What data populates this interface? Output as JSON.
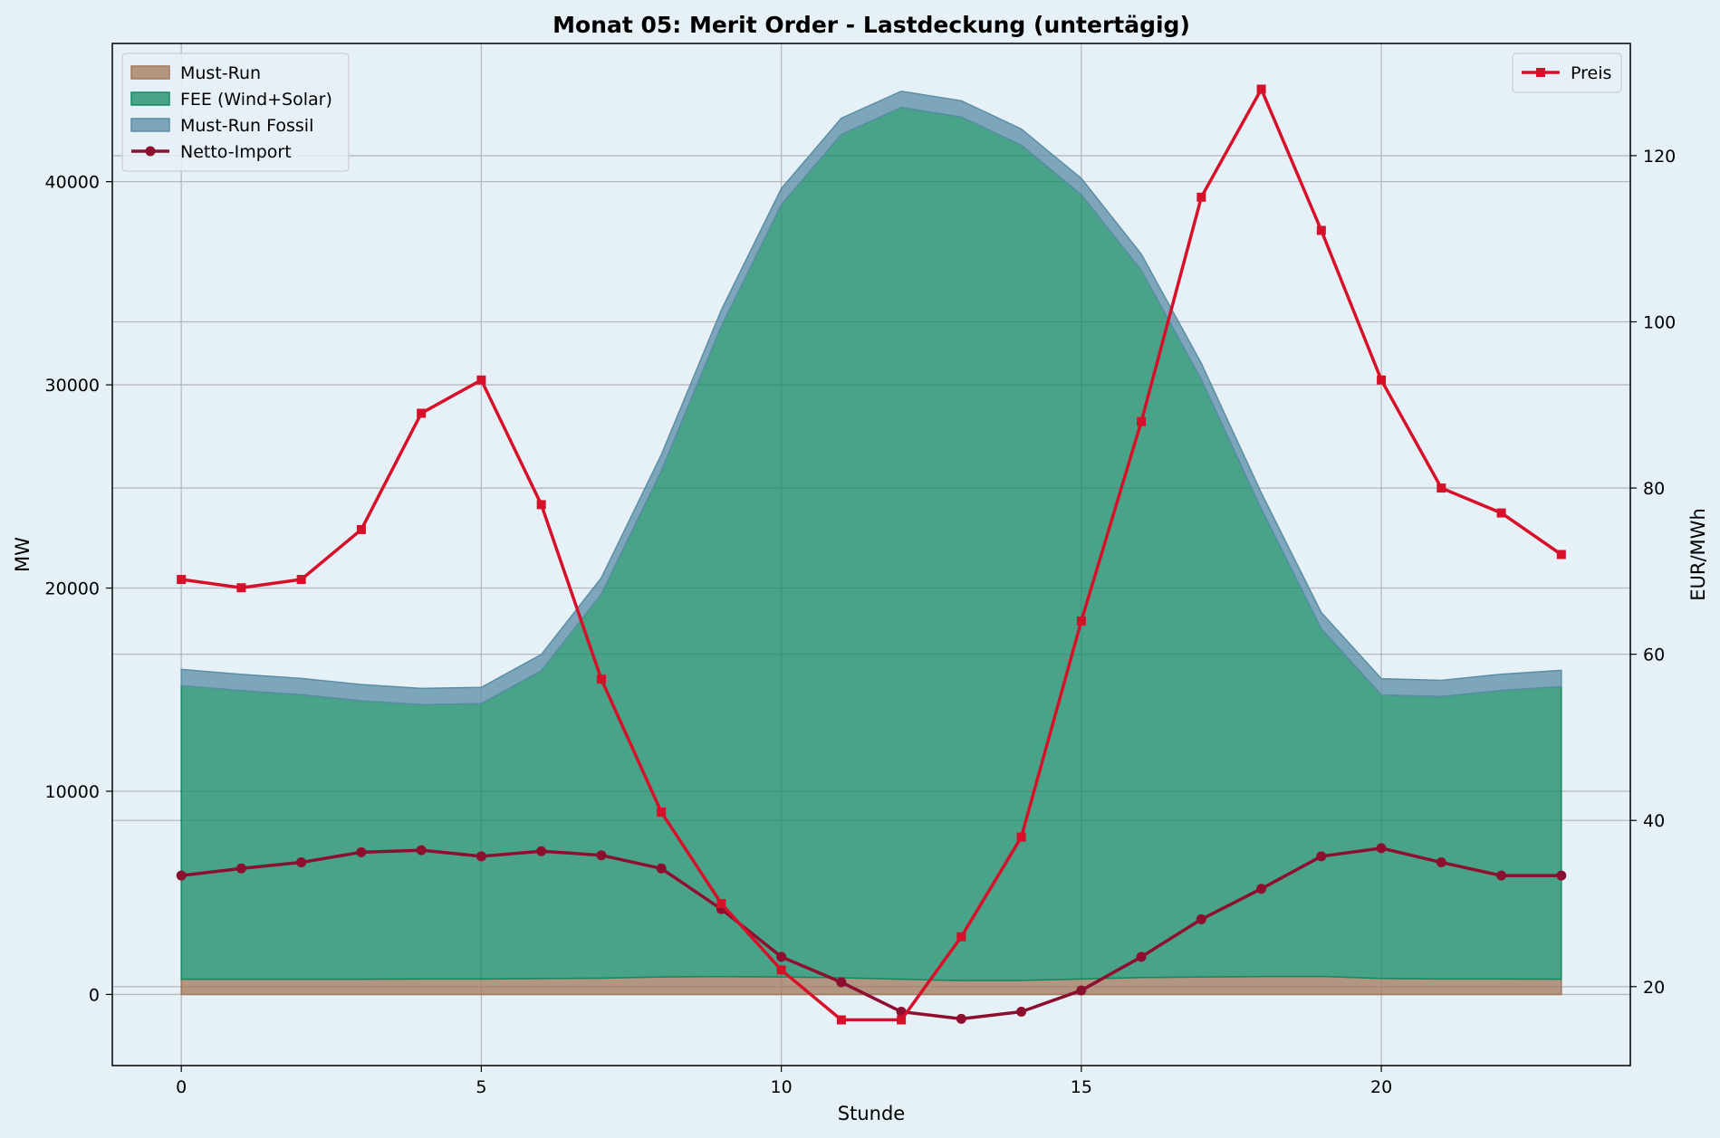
{
  "chart_data": {
    "type": "area",
    "title": "Monat 05: Merit Order - Lastdeckung (untertägig)",
    "xlabel": "Stunde",
    "ylabel": "MW",
    "y2label": "EUR/MWh",
    "x": [
      0,
      1,
      2,
      3,
      4,
      5,
      6,
      7,
      8,
      9,
      10,
      11,
      12,
      13,
      14,
      15,
      16,
      17,
      18,
      19,
      20,
      21,
      22,
      23
    ],
    "xlim": [
      -1.15,
      24.15
    ],
    "ylim": [
      -3500,
      46800
    ],
    "y2lim": [
      10.5,
      133.5
    ],
    "xticks": [
      0,
      5,
      10,
      15,
      20
    ],
    "yticks": [
      0,
      10000,
      20000,
      30000,
      40000
    ],
    "y2ticks": [
      20,
      40,
      60,
      80,
      100,
      120
    ],
    "grid": true,
    "stacked_series": [
      {
        "name": "Must-Run",
        "color": "#a0785a",
        "values": [
          750,
          750,
          750,
          750,
          760,
          760,
          780,
          800,
          860,
          880,
          860,
          820,
          750,
          680,
          690,
          760,
          830,
          860,
          880,
          890,
          790,
          760,
          760,
          750
        ]
      },
      {
        "name": "FEE (Wind+Solar)",
        "color": "#148a63",
        "values": [
          14450,
          14200,
          14000,
          13700,
          13500,
          13550,
          15150,
          18900,
          24900,
          32000,
          38000,
          41500,
          42900,
          42500,
          41100,
          38600,
          34800,
          29400,
          23000,
          17100,
          13950,
          13900,
          14200,
          14400
        ]
      },
      {
        "name": "Must-Run Fossil",
        "color": "#5b8ea5",
        "values": [
          800,
          800,
          800,
          800,
          800,
          800,
          800,
          800,
          800,
          800,
          800,
          800,
          800,
          800,
          800,
          800,
          800,
          800,
          800,
          800,
          800,
          800,
          800,
          800
        ]
      }
    ],
    "line_series": [
      {
        "name": "Netto-Import",
        "axis": "left",
        "color": "#8c0f2f",
        "marker": "circle",
        "values": [
          5850,
          6200,
          6500,
          7000,
          7100,
          6800,
          7050,
          6850,
          6200,
          4200,
          1850,
          600,
          -850,
          -1200,
          -850,
          200,
          1850,
          3700,
          5200,
          6800,
          7200,
          6500,
          5850,
          5850
        ]
      },
      {
        "name": "Preis",
        "axis": "right",
        "color": "#d7102a",
        "marker": "square",
        "values": [
          69,
          68,
          69,
          75,
          89,
          93,
          78,
          57,
          41,
          30,
          22,
          16,
          16,
          26,
          38,
          64,
          88,
          115,
          128,
          111,
          93,
          80,
          77,
          72
        ]
      }
    ],
    "legend_left": [
      "Must-Run",
      "FEE (Wind+Solar)",
      "Must-Run Fossil",
      "Netto-Import"
    ],
    "legend_right": [
      "Preis"
    ],
    "legend_left_position": "upper left",
    "legend_right_position": "upper right"
  }
}
